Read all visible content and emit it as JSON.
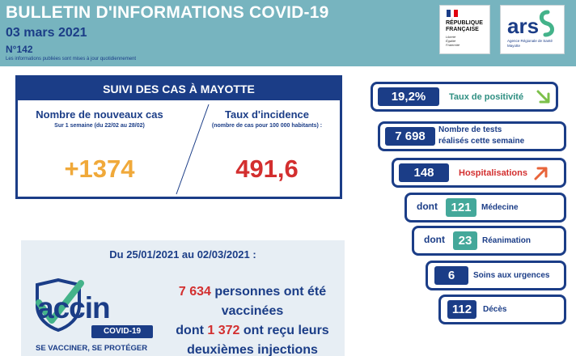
{
  "header": {
    "title": "BULLETIN D'INFORMATIONS COVID-19",
    "date": "03 mars 2021",
    "number": "N°142",
    "note": "Les informations publiées sont mises à jour quotidiennement"
  },
  "logos": {
    "republique": {
      "name_line1": "RÉPUBLIQUE",
      "name_line2": "FRANÇAISE",
      "motto_line1": "Liberté",
      "motto_line2": "Égalité",
      "motto_line3": "Fraternité"
    },
    "ars": {
      "wordmark": "ars",
      "subtitle_line1": "Agence Régionale de Santé",
      "subtitle_line2": "Mayotte"
    }
  },
  "cases": {
    "heading": "SUIVI DES CAS À MAYOTTE",
    "new_cases": {
      "title": "Nombre de nouveaux cas",
      "subtitle": "Sur 1 semaine (du 22/02 au 28/02)",
      "value": "+1374"
    },
    "incidence": {
      "title": "Taux d'incidence",
      "subtitle": "(nombre de cas pour 100 000 habitants) :",
      "value": "491,6"
    }
  },
  "vaccination": {
    "period": "Du 25/01/2021 au 02/03/2021 :",
    "logo_word": "accin",
    "logo_pill": "COVID-19",
    "logo_tagline": "SE VACCINER, SE PROTÉGER",
    "line1_count": "7 634",
    "line1_text": "personnes ont été",
    "line2_text": "vaccinées",
    "line3_prefix": "dont",
    "line3_count": "1 372",
    "line3_text": "ont reçu leurs",
    "line4_text": "deuxièmes injections"
  },
  "indicators": {
    "positivity": {
      "value": "19,2%",
      "label": "Taux de positivité",
      "trend": "down"
    },
    "tests": {
      "value": "7 698",
      "label_line1": "Nombre de tests",
      "label_line2": "réalisés cette semaine"
    },
    "hospitalisations": {
      "value": "148",
      "label": "Hospitalisations",
      "trend": "up"
    },
    "medecine": {
      "prefix": "dont",
      "value": "121",
      "label": "Médecine"
    },
    "reanimation": {
      "prefix": "dont",
      "value": "23",
      "label": "Réanimation"
    },
    "urgences": {
      "value": "6",
      "label": "Soins aux urgences"
    },
    "deces": {
      "value": "112",
      "label": "Décès"
    }
  },
  "colors": {
    "navy": "#1b3d87",
    "teal_header": "#77b4bf",
    "teal_accent": "#44a89a",
    "orange": "#f0a93a",
    "red": "#d32f2f",
    "light_panel": "#e7eef4"
  }
}
